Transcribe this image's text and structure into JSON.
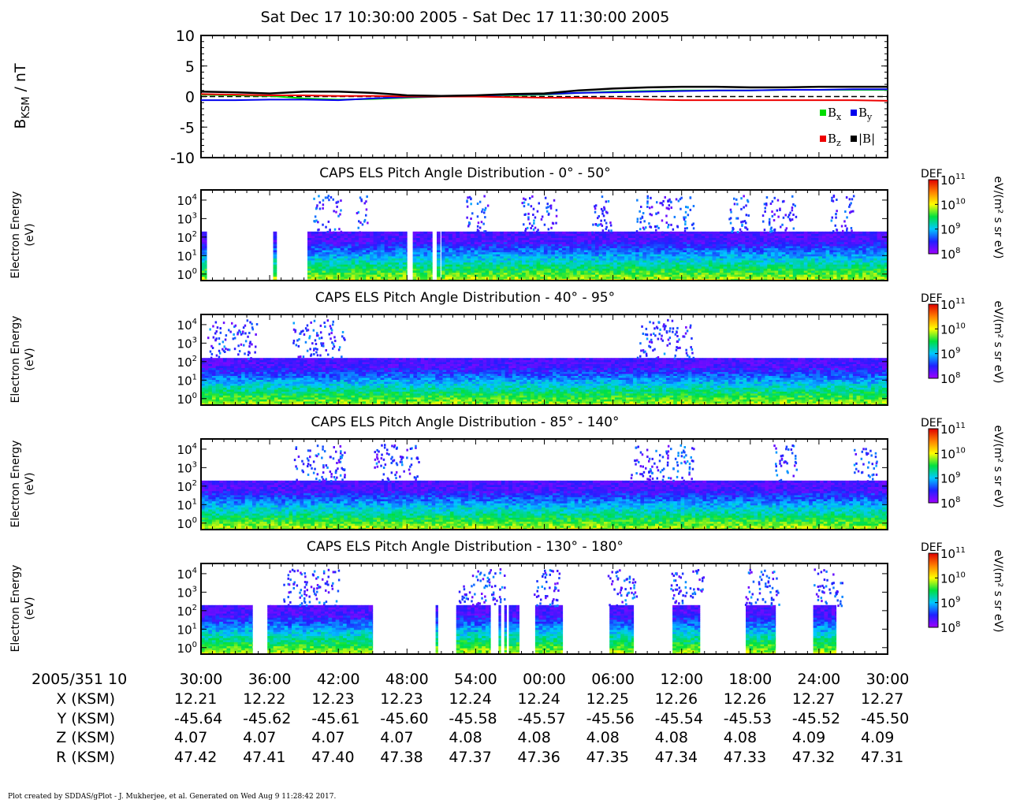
{
  "title": "Sat Dec 17 10:30:00 2005 - Sat Dec 17 11:30:00 2005",
  "footer": "Plot created by SDDAS/gPlot - J. Mukherjee, et al.  Generated on Wed Aug 9 11:28:42 2017.",
  "time_axis": {
    "prefix": "2005/351 10",
    "ticks": [
      "30:00",
      "36:00",
      "42:00",
      "48:00",
      "54:00",
      "00:00",
      "06:00",
      "12:00",
      "18:00",
      "24:00",
      "30:00"
    ]
  },
  "ephemeris": [
    {
      "label": "X (KSM)",
      "values": [
        "12.21",
        "12.22",
        "12.23",
        "12.23",
        "12.24",
        "12.24",
        "12.25",
        "12.26",
        "12.26",
        "12.27",
        "12.27"
      ]
    },
    {
      "label": "Y (KSM)",
      "values": [
        "-45.64",
        "-45.62",
        "-45.61",
        "-45.60",
        "-45.58",
        "-45.57",
        "-45.56",
        "-45.54",
        "-45.53",
        "-45.52",
        "-45.50"
      ]
    },
    {
      "label": "Z (KSM)",
      "values": [
        "4.07",
        "4.07",
        "4.07",
        "4.07",
        "4.08",
        "4.08",
        "4.08",
        "4.08",
        "4.08",
        "4.09",
        "4.09"
      ]
    },
    {
      "label": "R (KSM)",
      "values": [
        "47.42",
        "47.41",
        "47.40",
        "47.38",
        "47.37",
        "47.36",
        "47.35",
        "47.34",
        "47.33",
        "47.32",
        "47.31"
      ]
    }
  ],
  "spectrogram_colors": {
    "colorbar_stops": [
      "#a000ff",
      "#2020ff",
      "#00c8ff",
      "#00e040",
      "#ffff00",
      "#ff8000",
      "#e00000"
    ]
  },
  "chart_data": [
    {
      "type": "line",
      "ylabel_main": "B",
      "ylabel_sub": "KSM",
      "ylabel_unit": " / nT",
      "ylim": [
        -10,
        10
      ],
      "yticks": [
        "10",
        "5",
        "0",
        "-5",
        "-10"
      ],
      "x_minutes": [
        0,
        3,
        6,
        9,
        12,
        15,
        18,
        21,
        24,
        27,
        30,
        33,
        36,
        39,
        42,
        45,
        48,
        51,
        54,
        57,
        60
      ],
      "series": [
        {
          "name": "B",
          "sub": "x",
          "color": "#00dd00",
          "values": [
            0.3,
            0.2,
            0.1,
            -0.3,
            -0.5,
            -0.4,
            -0.2,
            0.0,
            0.1,
            0.2,
            0.3,
            0.6,
            0.8,
            0.9,
            1.0,
            1.0,
            1.0,
            1.1,
            1.1,
            1.1,
            1.1
          ]
        },
        {
          "name": "B",
          "sub": "y",
          "color": "#0000ee",
          "values": [
            -0.6,
            -0.6,
            -0.5,
            -0.5,
            -0.6,
            -0.3,
            -0.1,
            0.0,
            0.1,
            0.3,
            0.4,
            0.6,
            0.7,
            0.8,
            0.9,
            1.0,
            1.0,
            1.1,
            1.1,
            1.2,
            1.2
          ]
        },
        {
          "name": "B",
          "sub": "z",
          "color": "#ee0000",
          "values": [
            0.4,
            0.3,
            0.2,
            0.2,
            0.1,
            0.1,
            0.0,
            0.0,
            0.0,
            -0.1,
            -0.2,
            -0.2,
            -0.3,
            -0.5,
            -0.6,
            -0.6,
            -0.6,
            -0.6,
            -0.6,
            -0.6,
            -0.7
          ]
        },
        {
          "name": "|B|",
          "sub": "",
          "color": "#000000",
          "values": [
            0.8,
            0.7,
            0.5,
            0.8,
            0.8,
            0.6,
            0.2,
            0.1,
            0.2,
            0.4,
            0.5,
            1.0,
            1.3,
            1.5,
            1.6,
            1.6,
            1.5,
            1.5,
            1.6,
            1.6,
            1.6
          ]
        }
      ],
      "zero_line": "dashed"
    },
    {
      "type": "heatmap",
      "title": "CAPS ELS Pitch Angle Distribution - 0° - 50°",
      "ylabel": [
        "Electron Energy",
        "(eV)"
      ],
      "ytick_exponents": [
        "4",
        "3",
        "2",
        "1",
        "0"
      ],
      "colorbar": {
        "label": "DEF",
        "unit": "eV/(m² s sr eV)",
        "tick_exponents": [
          "11",
          "10",
          "9",
          "8"
        ]
      },
      "coverage_intervals_min": [
        [
          0,
          0.5
        ],
        [
          6.3,
          6.6
        ],
        [
          9.3,
          18.0
        ],
        [
          18.5,
          20.2
        ],
        [
          20.6,
          20.9
        ],
        [
          21.0,
          60
        ]
      ],
      "upper_energy_exp": 2.3,
      "bursts_min": [
        [
          9.8,
          12.2
        ],
        [
          13.5,
          14.5
        ],
        [
          23,
          25
        ],
        [
          28,
          31
        ],
        [
          34,
          36
        ],
        [
          38,
          43
        ],
        [
          46,
          48
        ],
        [
          49,
          52
        ],
        [
          55,
          57
        ]
      ],
      "color_scale": "log DEF 1e8 – 1e11"
    },
    {
      "type": "heatmap",
      "title": "CAPS ELS Pitch Angle Distribution - 40° - 95°",
      "ylabel": [
        "Electron Energy",
        "(eV)"
      ],
      "ytick_exponents": [
        "4",
        "3",
        "2",
        "1",
        "0"
      ],
      "colorbar": {
        "label": "DEF",
        "unit": "eV/(m² s sr eV)",
        "tick_exponents": [
          "11",
          "10",
          "9",
          "8"
        ]
      },
      "coverage_intervals_min": [
        [
          0,
          60
        ]
      ],
      "upper_energy_exp": 2.2,
      "bursts_min": [
        [
          0.5,
          5
        ],
        [
          8,
          12.5
        ],
        [
          38,
          43
        ]
      ],
      "color_scale": "log DEF 1e8 – 1e11"
    },
    {
      "type": "heatmap",
      "title": "CAPS ELS Pitch Angle Distribution - 85° - 140°",
      "ylabel": [
        "Electron Energy",
        "(eV)"
      ],
      "ytick_exponents": [
        "4",
        "3",
        "2",
        "1",
        "0"
      ],
      "colorbar": {
        "label": "DEF",
        "unit": "eV/(m² s sr eV)",
        "tick_exponents": [
          "11",
          "10",
          "9",
          "8"
        ]
      },
      "coverage_intervals_min": [
        [
          0,
          60
        ]
      ],
      "upper_energy_exp": 2.3,
      "bursts_min": [
        [
          8,
          12.5
        ],
        [
          15,
          19
        ],
        [
          37.5,
          43
        ],
        [
          50,
          52
        ],
        [
          57,
          59
        ]
      ],
      "color_scale": "log DEF 1e8 – 1e11"
    },
    {
      "type": "heatmap",
      "title": "CAPS ELS Pitch Angle Distribution - 130° - 180°",
      "ylabel": [
        "Electron Energy",
        "(eV)"
      ],
      "ytick_exponents": [
        "4",
        "3",
        "2",
        "1",
        "0"
      ],
      "colorbar": {
        "label": "DEF",
        "unit": "eV/(m² s sr eV)",
        "tick_exponents": [
          "11",
          "10",
          "9",
          "8"
        ]
      },
      "coverage_intervals_min": [
        [
          0,
          4.5
        ],
        [
          5.8,
          6.1
        ],
        [
          5.8,
          4.5
        ],
        [
          6.0,
          15.0
        ],
        [
          20.5,
          20.7
        ],
        [
          22.3,
          25.3
        ],
        [
          26.0,
          26.2
        ],
        [
          26.5,
          26.7
        ],
        [
          26.9,
          27.8
        ],
        [
          29.2,
          31.6
        ],
        [
          35.7,
          37.8
        ],
        [
          41.2,
          43.6
        ],
        [
          47.6,
          50.2
        ],
        [
          53.5,
          55.5
        ]
      ],
      "upper_energy_exp": 2.3,
      "bursts_min": [
        [
          7,
          12
        ],
        [
          22.5,
          26.5
        ],
        [
          29,
          31.5
        ],
        [
          35.5,
          38
        ],
        [
          41,
          44
        ],
        [
          47.5,
          50.5
        ],
        [
          53.5,
          56
        ]
      ],
      "color_scale": "log DEF 1e8 – 1e11"
    }
  ]
}
